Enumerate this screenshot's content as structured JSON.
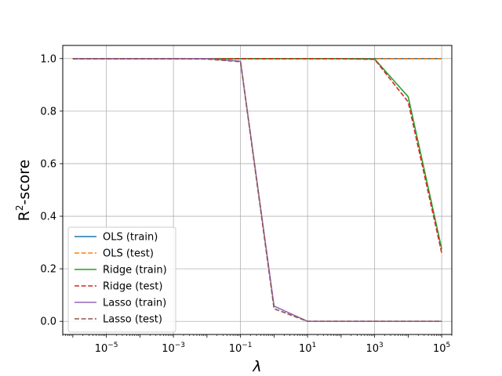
{
  "chart_data": {
    "type": "line",
    "xscale": "log",
    "xlim": [
      5e-07,
      200000.0
    ],
    "ylim": [
      -0.05,
      1.05
    ],
    "grid": true,
    "legend_placement": "lower-left",
    "xlabel": "λ",
    "ylabel_main": "R",
    "ylabel_sup": "2",
    "ylabel_rest": "-score",
    "xticks": [
      {
        "value": 1e-05,
        "base": "10",
        "exp": "−5"
      },
      {
        "value": 0.001,
        "base": "10",
        "exp": "−3"
      },
      {
        "value": 0.1,
        "base": "10",
        "exp": "−1"
      },
      {
        "value": 10,
        "base": "10",
        "exp": "1"
      },
      {
        "value": 1000,
        "base": "10",
        "exp": "3"
      },
      {
        "value": 100000,
        "base": "10",
        "exp": "5"
      }
    ],
    "yticks": [
      {
        "value": 0.0,
        "label": "0.0"
      },
      {
        "value": 0.2,
        "label": "0.2"
      },
      {
        "value": 0.4,
        "label": "0.4"
      },
      {
        "value": 0.6,
        "label": "0.6"
      },
      {
        "value": 0.8,
        "label": "0.8"
      },
      {
        "value": 1.0,
        "label": "1.0"
      }
    ],
    "x": [
      1e-06,
      1e-05,
      0.0001,
      0.001,
      0.01,
      0.1,
      1,
      10,
      100,
      1000,
      10000,
      100000
    ],
    "series": [
      {
        "name": "OLS (train)",
        "color": "#1f77b4",
        "dash": "solid",
        "values": [
          1.0,
          1.0,
          1.0,
          1.0,
          1.0,
          1.0,
          1.0,
          1.0,
          1.0,
          1.0,
          1.0,
          1.0
        ]
      },
      {
        "name": "OLS (test)",
        "color": "#ff7f0e",
        "dash": "dashed",
        "values": [
          0.999,
          0.999,
          0.999,
          0.999,
          0.999,
          0.999,
          0.999,
          0.999,
          0.999,
          0.999,
          0.999,
          0.999
        ]
      },
      {
        "name": "Ridge (train)",
        "color": "#2ca02c",
        "dash": "solid",
        "values": [
          1.0,
          1.0,
          1.0,
          1.0,
          1.0,
          1.0,
          1.0,
          1.0,
          1.0,
          0.998,
          0.855,
          0.275
        ]
      },
      {
        "name": "Ridge (test)",
        "color": "#d62728",
        "dash": "dashed",
        "values": [
          0.999,
          0.999,
          0.999,
          0.999,
          0.999,
          0.999,
          0.999,
          0.999,
          0.999,
          0.997,
          0.835,
          0.26
        ]
      },
      {
        "name": "Lasso (train)",
        "color": "#9467bd",
        "dash": "solid",
        "values": [
          1.0,
          1.0,
          1.0,
          1.0,
          1.0,
          0.99,
          0.058,
          0.0,
          0.0,
          0.0,
          0.0,
          0.0
        ]
      },
      {
        "name": "Lasso (test)",
        "color": "#8c564b",
        "dash": "dashed",
        "values": [
          0.999,
          0.999,
          0.999,
          0.999,
          0.998,
          0.988,
          0.048,
          0.0,
          0.0,
          0.0,
          0.0,
          0.0
        ]
      }
    ]
  }
}
